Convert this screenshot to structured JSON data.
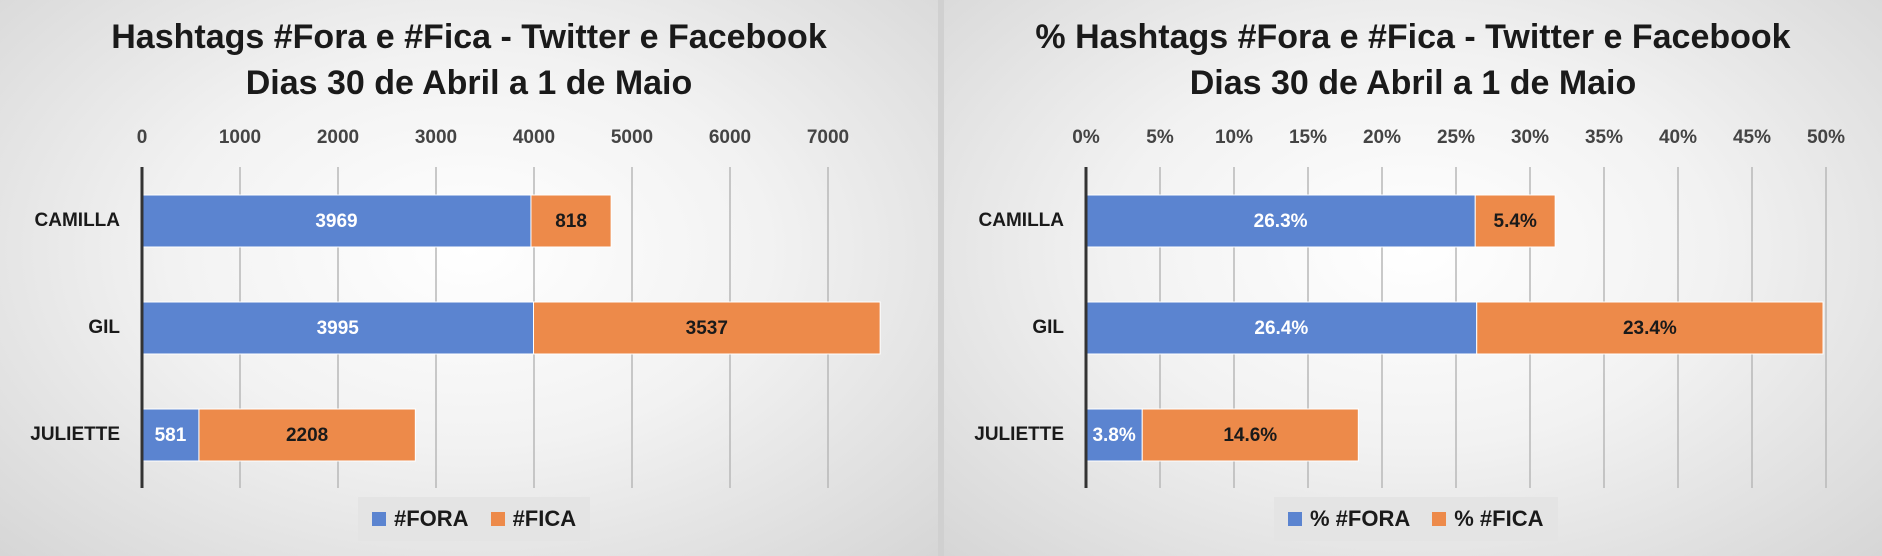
{
  "colors": {
    "fora": "#5b84d0",
    "fica": "#ed8a4a",
    "grid": "#b8b8b8",
    "axis": "#333333"
  },
  "chart_data": [
    {
      "type": "bar",
      "orientation": "horizontal",
      "stacked": true,
      "title_lines": [
        "Hashtags #Fora e #Fica - Twitter e Facebook",
        "Dias 30 de Abril a 1 de Maio"
      ],
      "categories": [
        "CAMILLA",
        "GIL",
        "JULIETTE"
      ],
      "series": [
        {
          "name": "#FORA",
          "values": [
            3969,
            3995,
            581
          ],
          "labels": [
            "3969",
            "3995",
            "581"
          ]
        },
        {
          "name": "#FICA",
          "values": [
            818,
            3537,
            2208
          ],
          "labels": [
            "818",
            "3537",
            "2208"
          ]
        }
      ],
      "xlim": [
        0,
        7500
      ],
      "ticks": [
        0,
        1000,
        2000,
        3000,
        4000,
        5000,
        6000,
        7000
      ],
      "tick_labels": [
        "0",
        "1000",
        "2000",
        "3000",
        "4000",
        "5000",
        "6000",
        "7000"
      ],
      "axis_position": "top",
      "grid": true,
      "legend": "bottom"
    },
    {
      "type": "bar",
      "orientation": "horizontal",
      "stacked": true,
      "title_lines": [
        "% Hashtags #Fora e #Fica - Twitter e Facebook",
        "Dias 30 de Abril a 1 de Maio"
      ],
      "categories": [
        "CAMILLA",
        "GIL",
        "JULIETTE"
      ],
      "series": [
        {
          "name": "% #FORA",
          "values": [
            26.3,
            26.4,
            3.8
          ],
          "labels": [
            "26.3%",
            "26.4%",
            "3.8%"
          ]
        },
        {
          "name": "% #FICA",
          "values": [
            5.4,
            23.4,
            14.6
          ],
          "labels": [
            "5.4%",
            "23.4%",
            "14.6%"
          ]
        }
      ],
      "xlim": [
        0,
        50
      ],
      "ticks": [
        0,
        5,
        10,
        15,
        20,
        25,
        30,
        35,
        40,
        45,
        50
      ],
      "tick_labels": [
        "0%",
        "5%",
        "10%",
        "15%",
        "20%",
        "25%",
        "30%",
        "35%",
        "40%",
        "45%",
        "50%"
      ],
      "axis_position": "top",
      "grid": true,
      "legend": "bottom"
    }
  ]
}
